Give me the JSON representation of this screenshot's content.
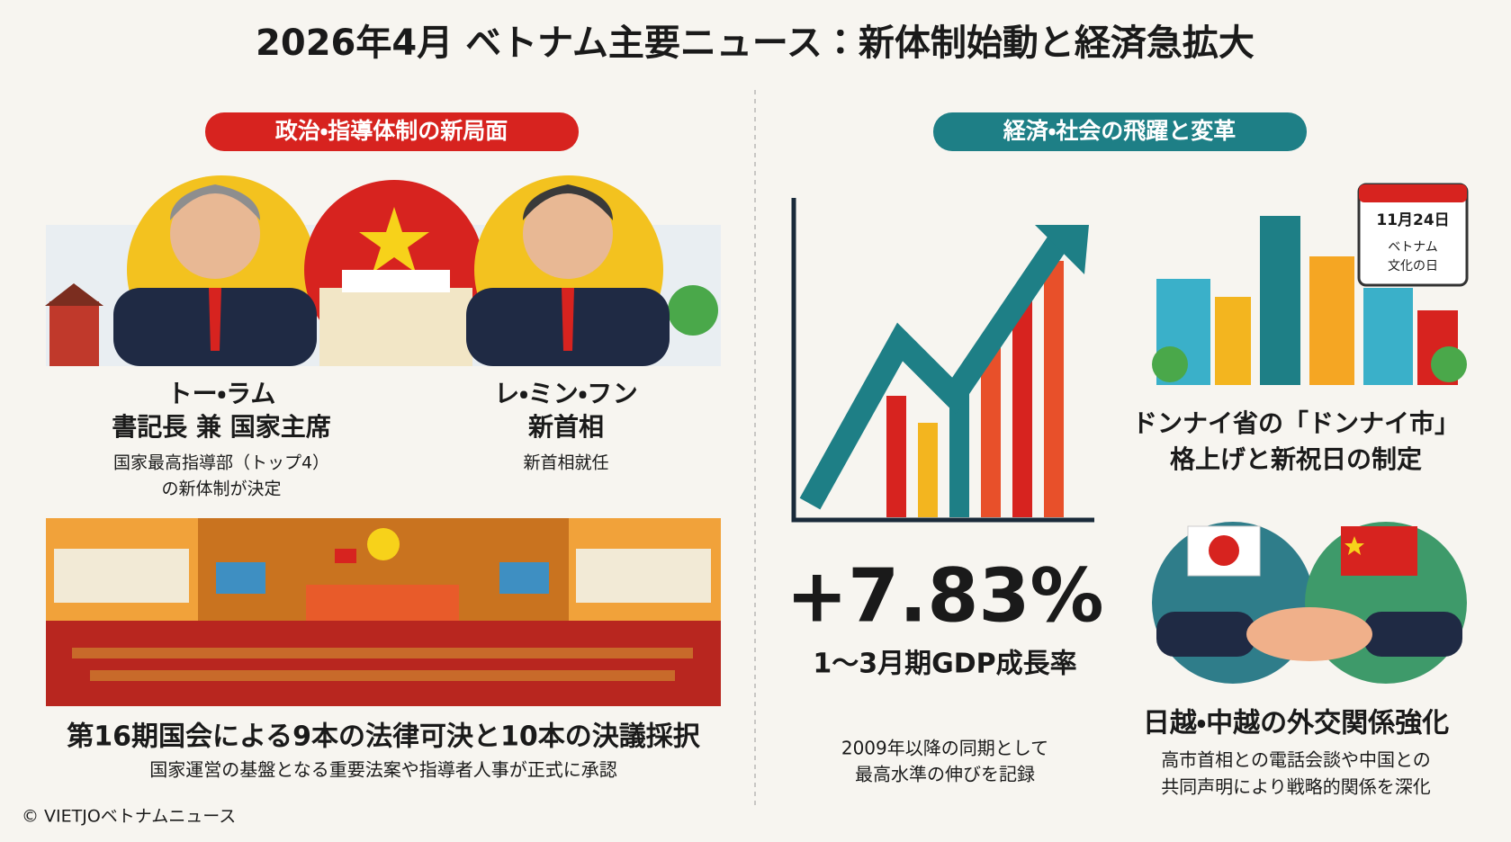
{
  "title": "2026年4月 ベトナム主要ニュース：新体制始動と経済急拡大",
  "politics": {
    "heading": "政治・指導体制の新局面",
    "people": [
      {
        "name": "トー・ラム",
        "role": "書記長 兼 国家主席",
        "notes": [
          "国家最高指導部（トップ4）",
          "の新体制が決定"
        ]
      },
      {
        "name": "レ・ミン・フン",
        "role": "新首相",
        "notes": [
          "新首相就任"
        ]
      }
    ],
    "assembly": {
      "title": "第16期国会による9本の法律可決と10本の決議採択",
      "subtitle": "国家運営の基盤となる重要法案や指導者人事が正式に承認"
    }
  },
  "economy": {
    "heading": "経済・社会の飛躍と変革",
    "gdp": {
      "value": "+7.83%",
      "label": "1〜3月期GDP成長率",
      "notes": [
        "2009年以降の同期として",
        "最高水準の伸びを記録"
      ]
    },
    "calendar": [
      "11月24日",
      "ベトナム",
      "文化の日"
    ],
    "dongnai": [
      "ドンナイ省の「ドンナイ市」",
      "格上げと新祝日の制定"
    ],
    "diplomacy": {
      "title": "日越・中越の外交関係強化",
      "lines": [
        "高市首相との電話会談や中国との",
        "共同声明により戦略的関係を深化"
      ]
    }
  },
  "footer": "© VIETJOベトナムニュース"
}
